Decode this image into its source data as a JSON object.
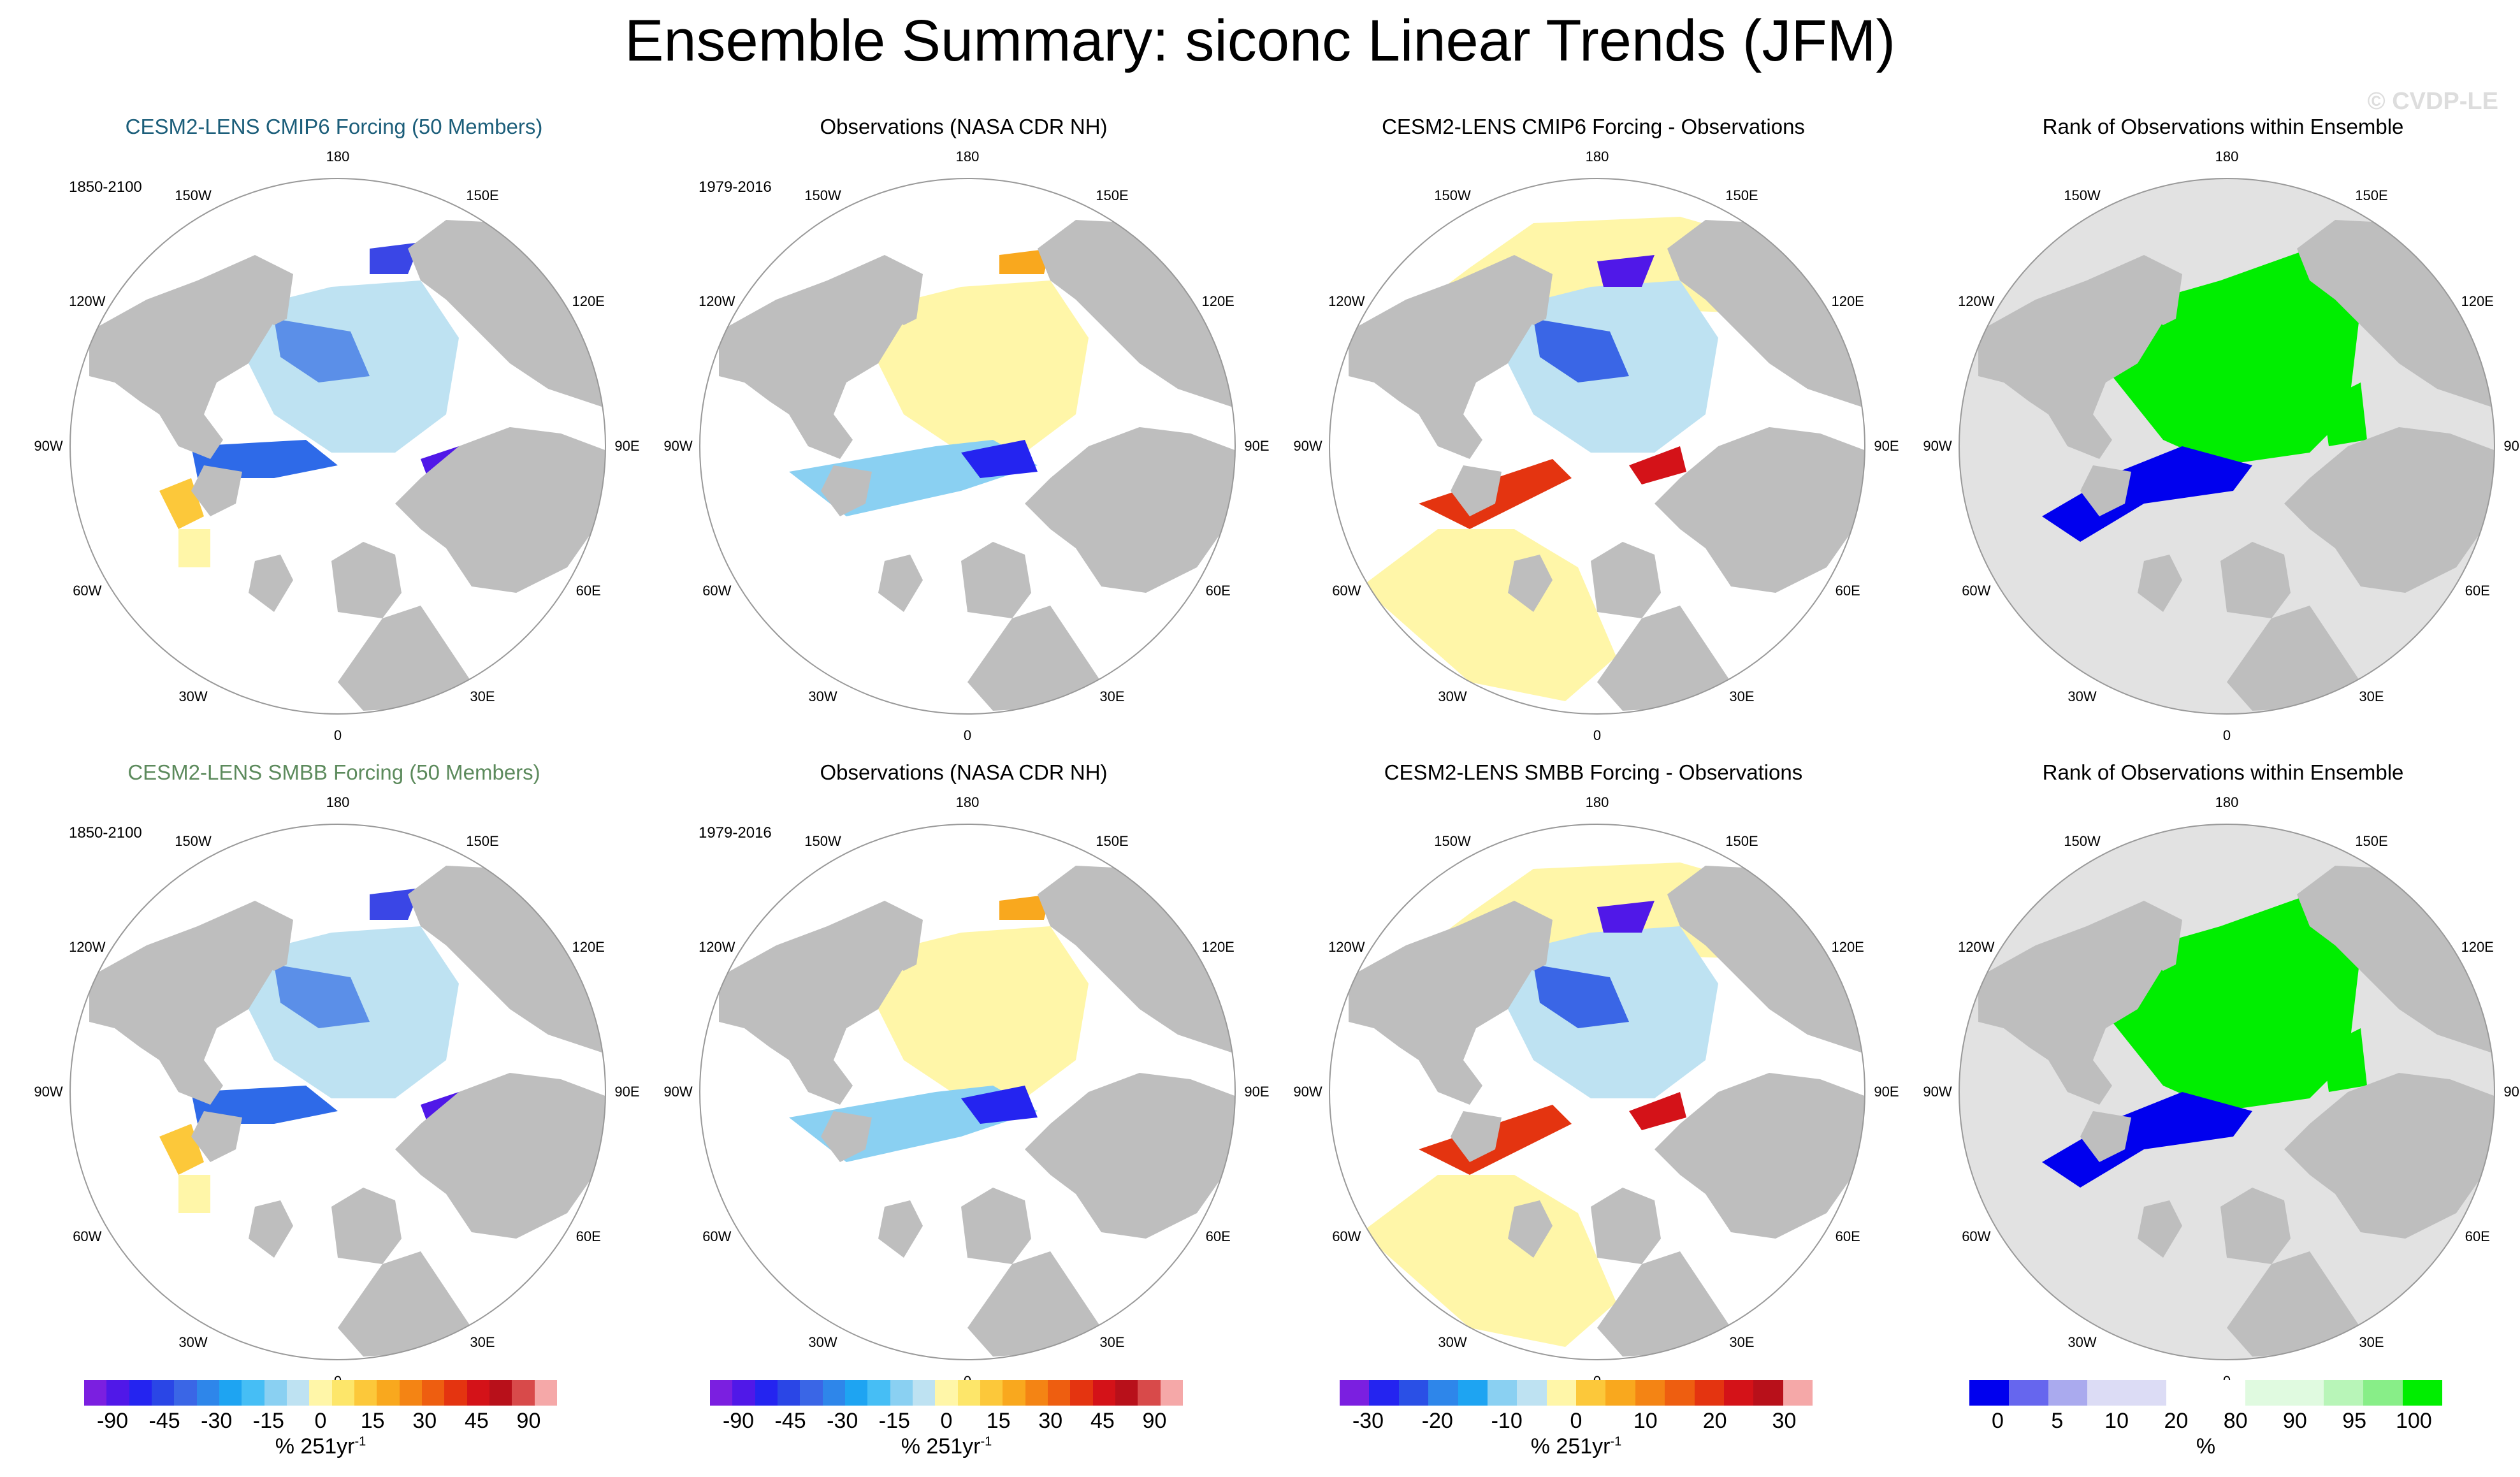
{
  "title": "Ensemble Summary: siconc Linear Trends (JFM)",
  "watermark": "© CVDP-LE",
  "labels": {
    "top": "180",
    "bottom": "0",
    "w150": "150W",
    "e150": "150E",
    "w120": "120W",
    "e120": "120E",
    "w90": "90W",
    "e90": "90E",
    "w60": "60W",
    "e60": "60E",
    "w30": "30W",
    "e30": "30E"
  },
  "panels": [
    {
      "title": "CESM2-LENS CMIP6 Forcing (50 Members)",
      "years": "1850-2100",
      "kind": "model",
      "style": "cmip6"
    },
    {
      "title": "Observations (NASA CDR NH)",
      "years": "1979-2016",
      "kind": "obs",
      "style": ""
    },
    {
      "title": "CESM2-LENS CMIP6 Forcing - Observations",
      "years": "",
      "kind": "diff",
      "style": ""
    },
    {
      "title": "Rank of Observations within Ensemble",
      "years": "",
      "kind": "rank",
      "style": ""
    },
    {
      "title": "CESM2-LENS SMBB Forcing (50 Members)",
      "years": "1850-2100",
      "kind": "model",
      "style": "smbb"
    },
    {
      "title": "Observations (NASA CDR NH)",
      "years": "1979-2016",
      "kind": "obs",
      "style": ""
    },
    {
      "title": "CESM2-LENS SMBB Forcing - Observations",
      "years": "",
      "kind": "diff",
      "style": ""
    },
    {
      "title": "Rank of Observations within Ensemble",
      "years": "",
      "kind": "rank",
      "style": ""
    }
  ],
  "colorbars": [
    {
      "colors": [
        "#7b1fe0",
        "#5018e8",
        "#2424f0",
        "#2a46e6",
        "#3a66e6",
        "#2e86ea",
        "#1ea4f2",
        "#46bef5",
        "#8ad0f2",
        "#bee2f2",
        "#fff6a8",
        "#fde66a",
        "#fcc83a",
        "#f9a81e",
        "#f48414",
        "#ee5e10",
        "#e43410",
        "#d41218",
        "#b8101a",
        "#d84a4a",
        "#f5a8a8"
      ],
      "ticks": [
        "-90",
        "-45",
        "-30",
        "-15",
        "0",
        "15",
        "30",
        "45",
        "90"
      ],
      "unit": "% 251yr",
      "unit_exp": "-1"
    },
    {
      "colors": [
        "#7b1fe0",
        "#5018e8",
        "#2424f0",
        "#2a46e6",
        "#3a66e6",
        "#2e86ea",
        "#1ea4f2",
        "#46bef5",
        "#8ad0f2",
        "#bee2f2",
        "#fff6a8",
        "#fde66a",
        "#fcc83a",
        "#f9a81e",
        "#f48414",
        "#ee5e10",
        "#e43410",
        "#d41218",
        "#b8101a",
        "#d84a4a",
        "#f5a8a8"
      ],
      "ticks": [
        "-90",
        "-45",
        "-30",
        "-15",
        "0",
        "15",
        "30",
        "45",
        "90"
      ],
      "unit": "% 251yr",
      "unit_exp": "-1"
    },
    {
      "colors": [
        "#7b1fe0",
        "#2424f0",
        "#2a50e6",
        "#2e86ea",
        "#1ea4f2",
        "#8ad0f2",
        "#bee2f2",
        "#fff6a8",
        "#fcc83a",
        "#f9a81e",
        "#f48414",
        "#ee5e10",
        "#e43410",
        "#d41218",
        "#b8101a",
        "#f5a8a8"
      ],
      "ticks": [
        "-30",
        "-20",
        "-10",
        "0",
        "10",
        "20",
        "30"
      ],
      "unit": "% 251yr",
      "unit_exp": "-1"
    },
    {
      "colors": [
        "#0000ee",
        "#6666ee",
        "#aaaaee",
        "#dcdcf5",
        "#dcdcf5",
        "#ffffff",
        "#ffffff",
        "#e0fae0",
        "#e0fae0",
        "#b8f5b8",
        "#88ee88",
        "#00ee00"
      ],
      "ticks": [
        "0",
        "5",
        "10",
        "20",
        "80",
        "90",
        "95",
        "100"
      ],
      "unit": "%",
      "unit_exp": ""
    }
  ]
}
